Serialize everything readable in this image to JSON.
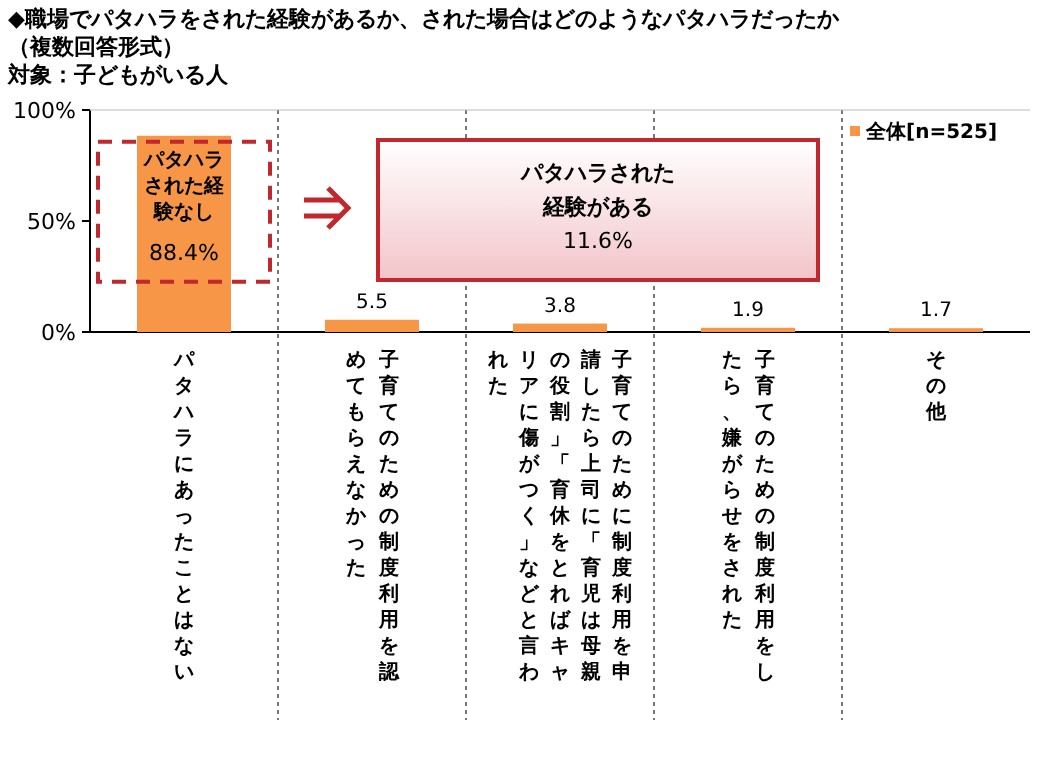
{
  "chart_data": {
    "type": "bar",
    "title": "◆職場でパタハラをされた経験があるか、された場合はどのようなパタハラだったか",
    "subtitle": "（複数回答形式）",
    "categories": [
      "パタハラにあったことはない",
      "子育てのための制度利用を認めてもらえなかった",
      "子育てのために制度利用を申請したら上司に「育児は母親の役割」「育休をとればキャリアに傷がつく」などと言われた",
      "子育てのための制度利用をしたら、嫌がらせをされた",
      "その他"
    ],
    "series": [
      {
        "name": "全体[n=525]",
        "color": "#f79646",
        "values": [
          88.4,
          5.5,
          3.8,
          1.9,
          1.7
        ],
        "value_labels": [
          "88.4%",
          "5.5",
          "3.8",
          "1.9",
          "1.7"
        ]
      }
    ],
    "annotations": [
      {
        "text": "パタハラされた経験なし",
        "x": "パタハラにあったことはない",
        "y": 88.4
      },
      "パタハラされた経験がある",
      "11.6%",
      "対象：子どもがいる人"
    ],
    "ylim": [
      0,
      100
    ],
    "yticks": [
      {
        "value": 0,
        "label": "0%"
      },
      {
        "value": 50,
        "label": "50%"
      },
      {
        "value": 100,
        "label": "100%"
      }
    ],
    "grid": "x",
    "legend": "top right"
  }
}
